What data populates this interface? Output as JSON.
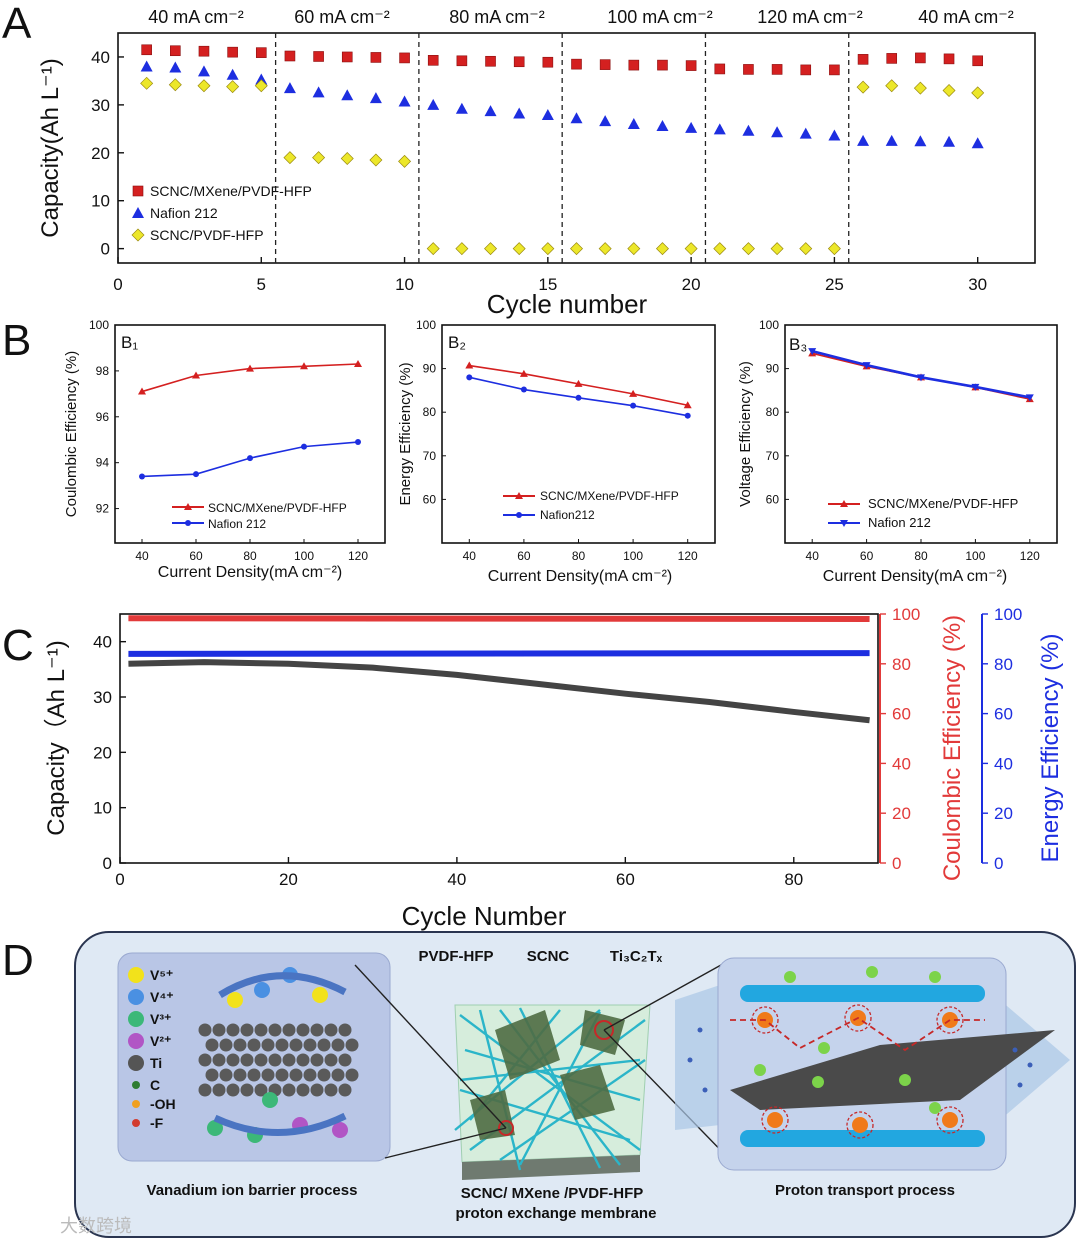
{
  "panel_labels": {
    "a": "A",
    "b": "B",
    "c": "C",
    "d": "D"
  },
  "colors": {
    "red": "#d42020",
    "blue": "#1d2ee0",
    "yellow": "#ece72a",
    "gray": "#444444",
    "coul": "#e23a3a"
  },
  "chart_data": [
    {
      "id": "A",
      "type": "scatter",
      "title": "",
      "xlabel": "Cycle number",
      "ylabel": "Capacity(Ah L⁻¹)",
      "xlim": [
        0,
        32
      ],
      "ylim": [
        -3,
        45
      ],
      "xticks": [
        "0",
        "5",
        "10",
        "15",
        "20",
        "25",
        "30"
      ],
      "yticks": [
        "0",
        "10",
        "20",
        "30",
        "40"
      ],
      "segment_labels": [
        "40 mA cm⁻²",
        "60 mA cm⁻²",
        "80 mA cm⁻²",
        "100 mA cm⁻²",
        "120 mA cm⁻²",
        "40 mA cm⁻²"
      ],
      "x": [
        1,
        2,
        3,
        4,
        5,
        6,
        7,
        8,
        9,
        10,
        11,
        12,
        13,
        14,
        15,
        16,
        17,
        18,
        19,
        20,
        21,
        22,
        23,
        24,
        25,
        26,
        27,
        28,
        29,
        30
      ],
      "series": [
        {
          "name": "SCNC/MXene/PVDF-HFP",
          "marker": "square",
          "values": [
            41.5,
            41.3,
            41.2,
            41.0,
            40.9,
            40.2,
            40.1,
            40.0,
            39.9,
            39.8,
            39.3,
            39.2,
            39.1,
            39.0,
            38.9,
            38.5,
            38.4,
            38.3,
            38.3,
            38.2,
            37.5,
            37.4,
            37.4,
            37.3,
            37.3,
            39.5,
            39.7,
            39.8,
            39.6,
            39.2
          ]
        },
        {
          "name": "Nafion 212",
          "marker": "triangle",
          "values": [
            38.0,
            37.8,
            37.0,
            36.3,
            35.3,
            33.5,
            32.6,
            32.0,
            31.4,
            30.7,
            30.0,
            29.2,
            28.7,
            28.2,
            27.9,
            27.2,
            26.6,
            26.0,
            25.6,
            25.2,
            24.9,
            24.6,
            24.3,
            24.0,
            23.6,
            22.5,
            22.5,
            22.4,
            22.3,
            22.0
          ]
        },
        {
          "name": "SCNC/PVDF-HFP",
          "marker": "diamond",
          "values": [
            34.5,
            34.2,
            34.0,
            33.8,
            34.0,
            19.0,
            19.0,
            18.8,
            18.5,
            18.2,
            0,
            0,
            0,
            0,
            0,
            0,
            0,
            0,
            0,
            0,
            0,
            0,
            0,
            0,
            0,
            33.7,
            34.0,
            33.5,
            33.0,
            32.5
          ]
        }
      ]
    },
    {
      "id": "B1",
      "type": "line",
      "subtitle": "B₁",
      "xlabel": "Current Density(mA cm⁻²)",
      "ylabel": "Coulombic Efficiency (%)",
      "xlim": [
        30,
        130
      ],
      "ylim": [
        90.5,
        100
      ],
      "xticks": [
        "40",
        "60",
        "80",
        "100",
        "120"
      ],
      "yticks": [
        "92",
        "94",
        "96",
        "98",
        "100"
      ],
      "x": [
        40,
        60,
        80,
        100,
        120
      ],
      "series": [
        {
          "name": "SCNC/MXene/PVDF-HFP",
          "values": [
            97.1,
            97.8,
            98.1,
            98.2,
            98.3
          ]
        },
        {
          "name": "Nafion 212",
          "values": [
            93.4,
            93.5,
            94.2,
            94.7,
            94.9
          ]
        }
      ]
    },
    {
      "id": "B2",
      "type": "line",
      "subtitle": "B₂",
      "xlabel": "Current Density(mA cm⁻²)",
      "ylabel": "Energy Efficiency (%)",
      "xlim": [
        30,
        130
      ],
      "ylim": [
        50,
        100
      ],
      "xticks": [
        "40",
        "60",
        "80",
        "100",
        "120"
      ],
      "yticks": [
        "60",
        "70",
        "80",
        "90",
        "100"
      ],
      "x": [
        40,
        60,
        80,
        100,
        120
      ],
      "series": [
        {
          "name": "SCNC/MXene/PVDF-HFP",
          "values": [
            90.7,
            88.8,
            86.5,
            84.2,
            81.6
          ]
        },
        {
          "name": "Nafion212",
          "values": [
            88.0,
            85.2,
            83.3,
            81.5,
            79.2
          ]
        }
      ]
    },
    {
      "id": "B3",
      "type": "line",
      "subtitle": "B₃",
      "xlabel": "Current Density(mA cm⁻²)",
      "ylabel": "Voltage Efficiency (%)",
      "xlim": [
        30,
        130
      ],
      "ylim": [
        50,
        100
      ],
      "xticks": [
        "40",
        "60",
        "80",
        "100",
        "120"
      ],
      "yticks": [
        "60",
        "70",
        "80",
        "90",
        "100"
      ],
      "x": [
        40,
        60,
        80,
        100,
        120
      ],
      "series": [
        {
          "name": "SCNC/MXene/PVDF-HFP",
          "values": [
            93.5,
            90.5,
            88.0,
            85.7,
            83.0
          ]
        },
        {
          "name": "Nafion 212",
          "values": [
            94.0,
            90.8,
            88.0,
            85.8,
            83.4
          ]
        }
      ]
    },
    {
      "id": "C",
      "type": "line",
      "xlabel": "Cycle Number",
      "ylabel": "Capacity（Ah L⁻¹)",
      "ylabel_right1": "Coulombic Efficiency (%)",
      "ylabel_right2": "Energy Efficiency (%)",
      "xlim": [
        0,
        90
      ],
      "ylim": [
        0,
        45
      ],
      "ylim_right": [
        0,
        100
      ],
      "xticks": [
        "0",
        "20",
        "40",
        "60",
        "80"
      ],
      "yticks": [
        "0",
        "10",
        "20",
        "30",
        "40"
      ],
      "yticks_right": [
        "0",
        "20",
        "40",
        "60",
        "80",
        "100"
      ],
      "series": [
        {
          "name": "Capacity",
          "axis": "left",
          "x": [
            1,
            10,
            20,
            30,
            40,
            50,
            60,
            70,
            80,
            89
          ],
          "values": [
            36.0,
            36.3,
            36.0,
            35.3,
            34.0,
            32.3,
            30.6,
            29.1,
            27.3,
            25.8
          ]
        },
        {
          "name": "Coulombic Efficiency",
          "axis": "right",
          "x": [
            1,
            89
          ],
          "values": [
            98.3,
            98.0
          ]
        },
        {
          "name": "Energy Efficiency",
          "axis": "right",
          "x": [
            1,
            89
          ],
          "values": [
            84.0,
            84.3
          ]
        }
      ]
    }
  ],
  "schematic": {
    "legend_items": [
      {
        "label": "V⁵⁺",
        "color": "#f2e21b"
      },
      {
        "label": "V⁴⁺",
        "color": "#4a90e2"
      },
      {
        "label": "V³⁺",
        "color": "#3cb878"
      },
      {
        "label": "V²⁺",
        "color": "#b155c5"
      },
      {
        "label": "Ti",
        "color": "#555555"
      },
      {
        "label": "C",
        "color": "#2e7d32"
      },
      {
        "label": "-OH",
        "color": "#f0a020"
      },
      {
        "label": "-F",
        "color": "#d23b2f"
      }
    ],
    "top_labels": [
      "PVDF-HFP",
      "SCNC",
      "Ti₃C₂Tₓ"
    ],
    "caption_left": "Vanadium ion barrier process",
    "caption_middle_1": "SCNC/ MXene /PVDF-HFP",
    "caption_middle_2": "proton exchange membrane",
    "caption_right": "Proton transport process",
    "watermark": "大数跨境"
  }
}
